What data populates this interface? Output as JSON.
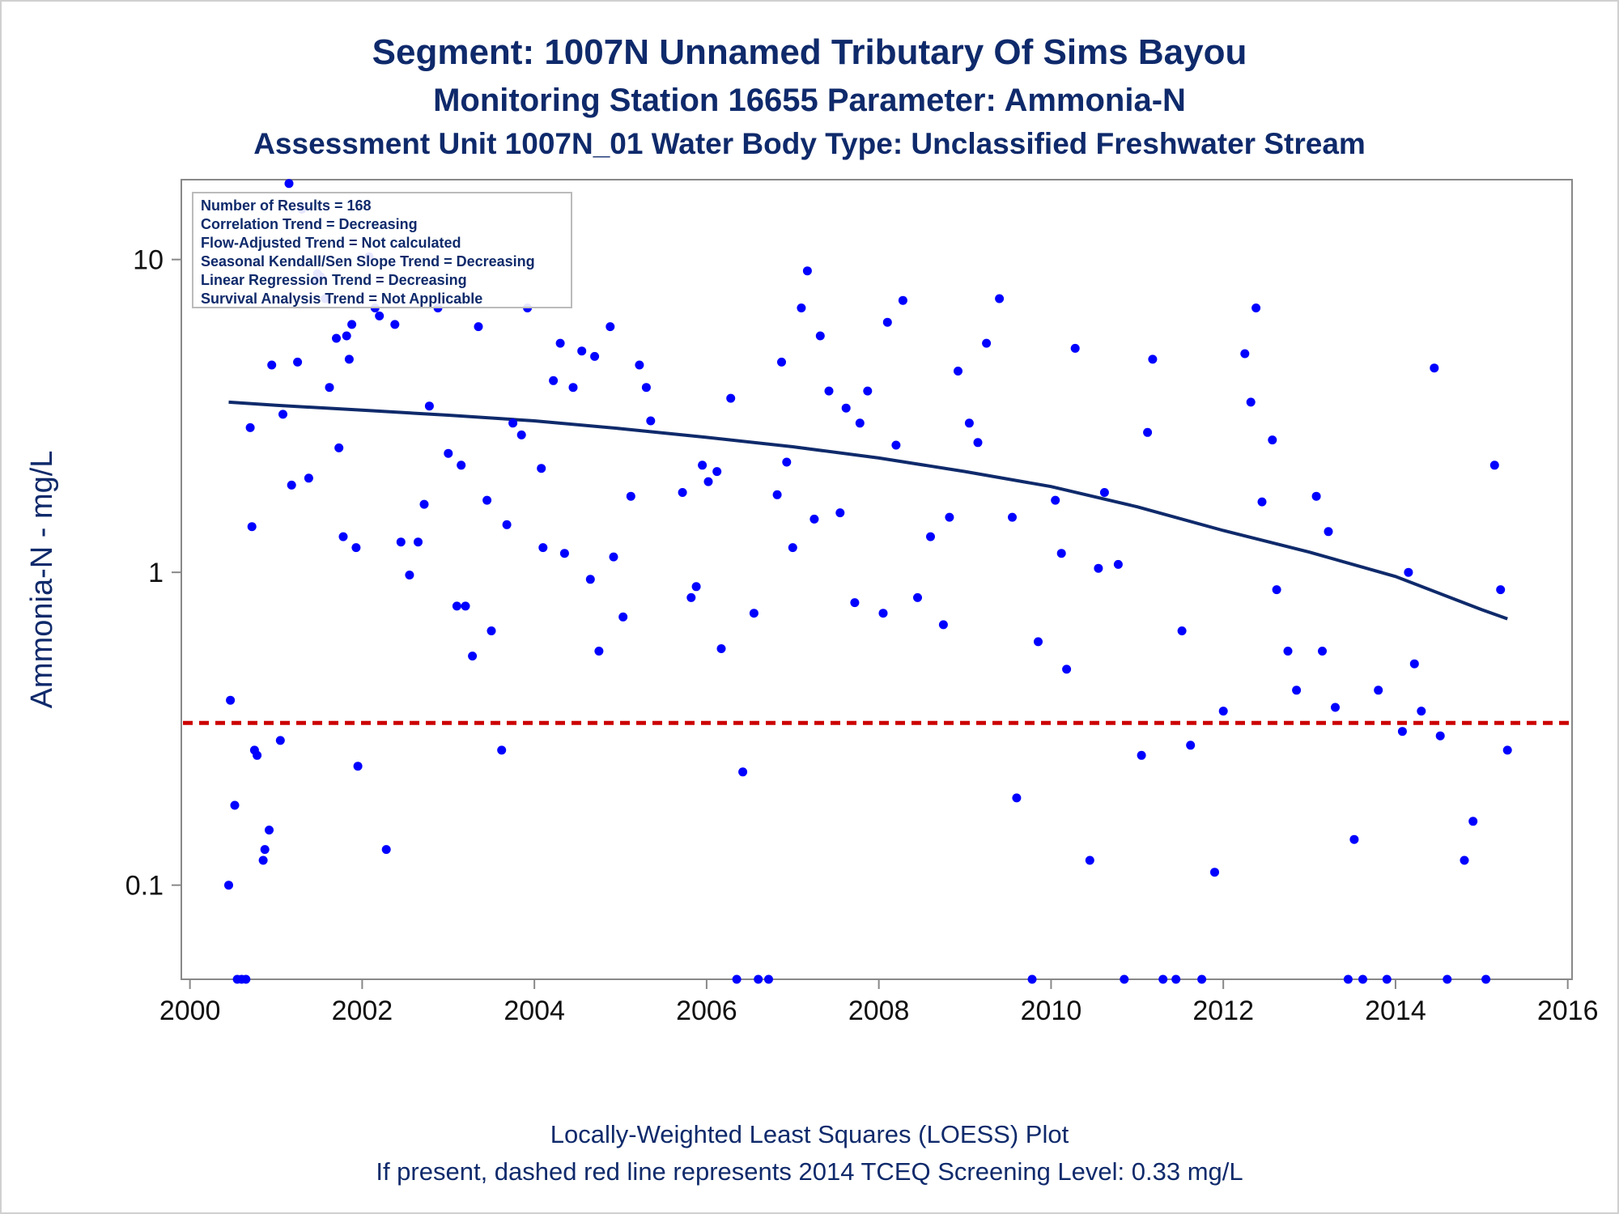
{
  "titles": {
    "line1": "Segment: 1007N  Unnamed Tributary Of Sims Bayou",
    "line2": "Monitoring Station 16655 Parameter: Ammonia-N",
    "line3": "Assessment Unit 1007N_01   Water Body Type: Unclassified Freshwater Stream"
  },
  "footnotes": {
    "line1": "Locally-Weighted Least Squares (LOESS) Plot",
    "line2": "If present, dashed red line represents 2014 TCEQ Screening Level: 0.33 mg/L"
  },
  "chart_data": {
    "type": "scatter",
    "ylabel": "Ammonia-N - mg/L",
    "xlabel": "",
    "y_scale": "log",
    "xlim": [
      1999.9,
      2016.05
    ],
    "ylim": [
      0.05,
      18
    ],
    "x_ticks": [
      2000,
      2002,
      2004,
      2006,
      2008,
      2010,
      2012,
      2014,
      2016
    ],
    "y_ticks": [
      0.1,
      1,
      10
    ],
    "y_tick_labels": [
      "0.1",
      "1",
      "10"
    ],
    "grid": false,
    "legend_position": "top-left",
    "stats_box": [
      "Number of Results = 168",
      "Correlation Trend = Decreasing",
      "Flow-Adjusted Trend = Not calculated",
      "Seasonal Kendall/Sen Slope Trend = Decreasing",
      "Linear Regression Trend = Decreasing",
      "Survival Analysis Trend = Not Applicable"
    ],
    "screening_level": {
      "y": 0.33,
      "color": "#cc0000",
      "style": "dashed"
    },
    "point_color": "#0000ff",
    "loess_color": "#0f2a6b",
    "loess": [
      [
        2000.45,
        3.5
      ],
      [
        2001,
        3.42
      ],
      [
        2002,
        3.3
      ],
      [
        2003,
        3.18
      ],
      [
        2004,
        3.05
      ],
      [
        2005,
        2.88
      ],
      [
        2006,
        2.7
      ],
      [
        2007,
        2.52
      ],
      [
        2008,
        2.32
      ],
      [
        2009,
        2.1
      ],
      [
        2010,
        1.88
      ],
      [
        2011,
        1.62
      ],
      [
        2012,
        1.36
      ],
      [
        2013,
        1.16
      ],
      [
        2014,
        0.97
      ],
      [
        2015,
        0.76
      ],
      [
        2015.3,
        0.71
      ]
    ],
    "points": [
      [
        2000.45,
        0.1
      ],
      [
        2000.47,
        0.39
      ],
      [
        2000.52,
        0.18
      ],
      [
        2000.55,
        0.05
      ],
      [
        2000.6,
        0.05
      ],
      [
        2000.65,
        0.05
      ],
      [
        2000.7,
        2.9
      ],
      [
        2000.72,
        1.4
      ],
      [
        2000.75,
        0.27
      ],
      [
        2000.78,
        0.26
      ],
      [
        2000.85,
        0.12
      ],
      [
        2000.87,
        0.13
      ],
      [
        2000.92,
        0.15
      ],
      [
        2000.95,
        4.6
      ],
      [
        2001.05,
        0.29
      ],
      [
        2001.08,
        3.2
      ],
      [
        2001.18,
        1.9
      ],
      [
        2001.25,
        4.7
      ],
      [
        2001.3,
        14.5
      ],
      [
        2001.38,
        2.0
      ],
      [
        2001.45,
        8.5
      ],
      [
        2001.48,
        9.0
      ],
      [
        2001.52,
        8.8
      ],
      [
        2001.57,
        7.5
      ],
      [
        2001.62,
        3.9
      ],
      [
        2001.7,
        5.6
      ],
      [
        2001.73,
        2.5
      ],
      [
        2001.78,
        1.3
      ],
      [
        2001.82,
        5.7
      ],
      [
        2001.85,
        4.8
      ],
      [
        2001.88,
        6.2
      ],
      [
        2001.93,
        1.2
      ],
      [
        2001.95,
        0.24
      ],
      [
        2002.08,
        10.2
      ],
      [
        2002.15,
        7.0
      ],
      [
        2002.2,
        6.6
      ],
      [
        2002.28,
        0.13
      ],
      [
        2002.38,
        6.2
      ],
      [
        2002.45,
        1.25
      ],
      [
        2002.55,
        0.98
      ],
      [
        2002.65,
        1.25
      ],
      [
        2002.72,
        1.65
      ],
      [
        2002.78,
        3.4
      ],
      [
        2002.88,
        7.0
      ],
      [
        2003.0,
        2.4
      ],
      [
        2003.1,
        0.78
      ],
      [
        2003.15,
        2.2
      ],
      [
        2003.2,
        0.78
      ],
      [
        2003.28,
        0.54
      ],
      [
        2003.35,
        6.1
      ],
      [
        2003.45,
        1.7
      ],
      [
        2003.5,
        0.65
      ],
      [
        2003.62,
        0.27
      ],
      [
        2003.68,
        1.42
      ],
      [
        2003.75,
        3.0
      ],
      [
        2003.85,
        2.75
      ],
      [
        2003.92,
        7.0
      ],
      [
        2004.08,
        2.15
      ],
      [
        2004.1,
        1.2
      ],
      [
        2004.22,
        4.1
      ],
      [
        2004.3,
        5.4
      ],
      [
        2004.35,
        1.15
      ],
      [
        2004.45,
        3.9
      ],
      [
        2004.55,
        5.1
      ],
      [
        2004.65,
        0.95
      ],
      [
        2004.7,
        4.9
      ],
      [
        2004.75,
        0.56
      ],
      [
        2004.88,
        6.1
      ],
      [
        2004.92,
        1.12
      ],
      [
        2005.03,
        0.72
      ],
      [
        2005.12,
        1.75
      ],
      [
        2005.22,
        4.6
      ],
      [
        2005.3,
        3.9
      ],
      [
        2005.35,
        3.05
      ],
      [
        2005.72,
        1.8
      ],
      [
        2005.82,
        0.83
      ],
      [
        2005.88,
        0.9
      ],
      [
        2005.95,
        2.2
      ],
      [
        2006.02,
        1.95
      ],
      [
        2006.12,
        2.1
      ],
      [
        2006.17,
        0.57
      ],
      [
        2006.28,
        3.6
      ],
      [
        2006.35,
        0.05
      ],
      [
        2006.42,
        0.23
      ],
      [
        2006.55,
        0.74
      ],
      [
        2006.6,
        0.05
      ],
      [
        2006.72,
        0.05
      ],
      [
        2006.82,
        1.77
      ],
      [
        2006.87,
        4.7
      ],
      [
        2006.93,
        2.25
      ],
      [
        2007.0,
        1.2
      ],
      [
        2007.1,
        7.0
      ],
      [
        2007.17,
        9.2
      ],
      [
        2007.25,
        1.48
      ],
      [
        2007.32,
        5.7
      ],
      [
        2007.42,
        3.8
      ],
      [
        2007.55,
        1.55
      ],
      [
        2007.62,
        3.35
      ],
      [
        2007.72,
        0.8
      ],
      [
        2007.78,
        3.0
      ],
      [
        2007.87,
        3.8
      ],
      [
        2008.05,
        0.74
      ],
      [
        2008.1,
        6.3
      ],
      [
        2008.2,
        2.55
      ],
      [
        2008.28,
        7.4
      ],
      [
        2008.45,
        0.83
      ],
      [
        2008.6,
        1.3
      ],
      [
        2008.75,
        0.68
      ],
      [
        2008.82,
        1.5
      ],
      [
        2008.92,
        4.4
      ],
      [
        2009.05,
        3.0
      ],
      [
        2009.15,
        2.6
      ],
      [
        2009.25,
        5.4
      ],
      [
        2009.4,
        7.5
      ],
      [
        2009.55,
        1.5
      ],
      [
        2009.6,
        0.19
      ],
      [
        2009.78,
        0.05
      ],
      [
        2009.85,
        0.6
      ],
      [
        2010.05,
        1.7
      ],
      [
        2010.12,
        1.15
      ],
      [
        2010.18,
        0.49
      ],
      [
        2010.28,
        5.2
      ],
      [
        2010.45,
        0.12
      ],
      [
        2010.55,
        1.03
      ],
      [
        2010.62,
        1.8
      ],
      [
        2010.78,
        1.06
      ],
      [
        2010.85,
        0.05
      ],
      [
        2011.05,
        0.26
      ],
      [
        2011.12,
        2.8
      ],
      [
        2011.18,
        4.8
      ],
      [
        2011.3,
        0.05
      ],
      [
        2011.45,
        0.05
      ],
      [
        2011.52,
        0.65
      ],
      [
        2011.62,
        0.28
      ],
      [
        2011.75,
        0.05
      ],
      [
        2011.9,
        0.11
      ],
      [
        2012.0,
        0.36
      ],
      [
        2012.25,
        5.0
      ],
      [
        2012.32,
        3.5
      ],
      [
        2012.38,
        7.0
      ],
      [
        2012.45,
        1.68
      ],
      [
        2012.57,
        2.65
      ],
      [
        2012.62,
        0.88
      ],
      [
        2012.75,
        0.56
      ],
      [
        2012.85,
        0.42
      ],
      [
        2013.08,
        1.75
      ],
      [
        2013.15,
        0.56
      ],
      [
        2013.22,
        1.35
      ],
      [
        2013.3,
        0.37
      ],
      [
        2013.45,
        0.05
      ],
      [
        2013.52,
        0.14
      ],
      [
        2013.62,
        0.05
      ],
      [
        2013.8,
        0.42
      ],
      [
        2013.9,
        0.05
      ],
      [
        2014.08,
        0.31
      ],
      [
        2014.15,
        1.0
      ],
      [
        2014.22,
        0.51
      ],
      [
        2014.3,
        0.36
      ],
      [
        2014.45,
        4.5
      ],
      [
        2014.52,
        0.3
      ],
      [
        2014.6,
        0.05
      ],
      [
        2014.8,
        0.12
      ],
      [
        2014.9,
        0.16
      ],
      [
        2015.05,
        0.05
      ],
      [
        2015.15,
        2.2
      ],
      [
        2015.22,
        0.88
      ],
      [
        2015.3,
        0.27
      ],
      [
        2001.15,
        17.5
      ]
    ]
  }
}
